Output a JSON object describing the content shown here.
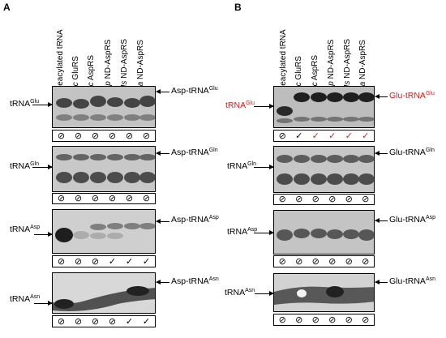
{
  "panels": [
    {
      "letter": "A",
      "lanes": [
        {
          "italic": "",
          "rest": "Deacylated tRNA"
        },
        {
          "italic": "Ec",
          "rest": " GluRS"
        },
        {
          "italic": "Ec",
          "rest": " AspRS"
        },
        {
          "italic": "Hp",
          "rest": " ND-AspRS"
        },
        {
          "italic": "Ms",
          "rest": " ND-AspRS"
        },
        {
          "italic": "Sa",
          "rest": " ND-AspRS"
        }
      ],
      "rows": [
        {
          "left_base": "tRNA",
          "left_sup": "Glu",
          "right_base": "Asp-tRNA",
          "right_sup": "Glu",
          "marks": [
            "⊘",
            "⊘",
            "⊘",
            "⊘",
            "⊘",
            "⊘"
          ]
        },
        {
          "left_base": "tRNA",
          "left_sup": "Gln",
          "right_base": "Asp-tRNA",
          "right_sup": "Gln",
          "marks": [
            "⊘",
            "⊘",
            "⊘",
            "⊘",
            "⊘",
            "⊘"
          ]
        },
        {
          "left_base": "tRNA",
          "left_sup": "Asp",
          "right_base": "Asp-tRNA",
          "right_sup": "Asp",
          "marks": [
            "⊘",
            "⊘",
            "⊘",
            "✓",
            "✓",
            "✓"
          ]
        },
        {
          "left_base": "tRNA",
          "left_sup": "Asn",
          "right_base": "Asp-tRNA",
          "right_sup": "Asn",
          "marks": [
            "⊘",
            "⊘",
            "⊘",
            "⊘",
            "✓",
            "✓"
          ]
        }
      ]
    },
    {
      "letter": "B",
      "lanes": [
        {
          "italic": "",
          "rest": "Deacylated tRNA"
        },
        {
          "italic": "Ec",
          "rest": " GluRS"
        },
        {
          "italic": "Ec",
          "rest": " AspRS"
        },
        {
          "italic": "Hp",
          "rest": " ND-AspRS"
        },
        {
          "italic": "Ms",
          "rest": " ND-AspRS"
        },
        {
          "italic": "Sa",
          "rest": " ND-AspRS"
        }
      ],
      "rows": [
        {
          "left_base": "tRNA",
          "left_sup": "Glu",
          "right_base": "Glu-tRNA",
          "right_sup": "Glu",
          "highlight": true,
          "marks": [
            "⊘",
            "✓",
            "✓",
            "✓",
            "✓",
            "✓"
          ],
          "mark_colors": [
            "#000000",
            "#000000",
            "#d22222",
            "#d22222",
            "#d22222",
            "#d22222"
          ]
        },
        {
          "left_base": "tRNA",
          "left_sup": "Gln",
          "right_base": "Glu-tRNA",
          "right_sup": "Gln",
          "marks": [
            "⊘",
            "⊘",
            "⊘",
            "⊘",
            "⊘",
            "⊘"
          ]
        },
        {
          "left_base": "tRNA",
          "left_sup": "Asp",
          "right_base": "Glu-tRNA",
          "right_sup": "Asp",
          "marks": [
            "⊘",
            "⊘",
            "⊘",
            "⊘",
            "⊘",
            "⊘"
          ]
        },
        {
          "left_base": "tRNA",
          "left_sup": "Asn",
          "right_base": "Glu-tRNA",
          "right_sup": "Asn",
          "marks": [
            "⊘",
            "⊘",
            "⊘",
            "⊘",
            "⊘",
            "⊘"
          ]
        }
      ]
    }
  ],
  "colors": {
    "highlight": "#d21c1c",
    "blot_dark": "#2a2a2a",
    "blot_light": "#bdbdbd"
  }
}
